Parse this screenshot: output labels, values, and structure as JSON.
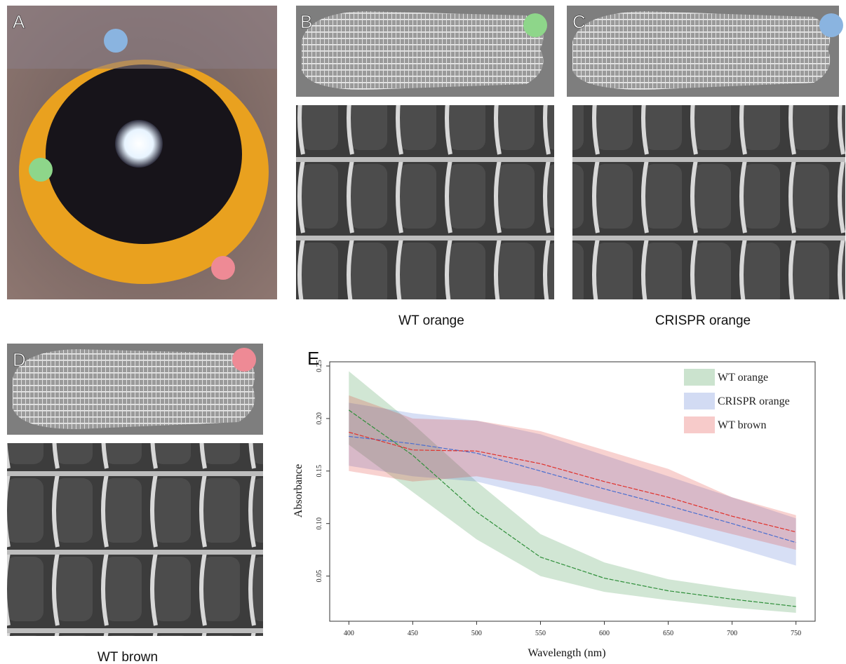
{
  "panels": {
    "labels": [
      "A",
      "B",
      "C",
      "D",
      "E"
    ],
    "captions": [
      "WT orange",
      "CRISPR orange",
      "WT brown"
    ]
  },
  "chart_data": {
    "type": "band-line",
    "x_label": "Wavelength (nm)",
    "y_label": "Absorbance",
    "x": [
      400,
      450,
      500,
      550,
      600,
      650,
      700,
      750
    ],
    "xlim": [
      385,
      765
    ],
    "xticks": [
      400,
      450,
      500,
      550,
      600,
      650,
      700,
      750
    ],
    "ylim": [
      0.007,
      0.254
    ],
    "yticks": [
      0.05,
      {
        "value": 0.1,
        "label": "0.10"
      },
      0.15,
      {
        "value": 0.2,
        "label": "0.20"
      },
      0.25
    ],
    "legend": "upper right",
    "series": [
      {
        "name": "WT orange",
        "color": "#2f8f3a",
        "values": [
          0.208,
          0.165,
          0.111,
          0.068,
          0.048,
          0.036,
          0.028,
          0.021
        ],
        "lower": [
          0.175,
          0.13,
          0.085,
          0.05,
          0.035,
          0.027,
          0.02,
          0.015
        ],
        "upper": [
          0.245,
          0.195,
          0.14,
          0.09,
          0.063,
          0.047,
          0.038,
          0.03
        ]
      },
      {
        "name": "CRISPR orange",
        "color": "#4a6fd0",
        "values": [
          0.183,
          0.176,
          0.167,
          0.15,
          0.133,
          0.117,
          0.1,
          0.082
        ],
        "lower": [
          0.155,
          0.145,
          0.14,
          0.125,
          0.11,
          0.095,
          0.078,
          0.06
        ],
        "upper": [
          0.215,
          0.205,
          0.198,
          0.185,
          0.165,
          0.145,
          0.125,
          0.105
        ]
      },
      {
        "name": "WT brown",
        "color": "#e0302a",
        "values": [
          0.187,
          0.17,
          0.169,
          0.157,
          0.14,
          0.125,
          0.107,
          0.092
        ],
        "lower": [
          0.15,
          0.14,
          0.145,
          0.135,
          0.12,
          0.105,
          0.09,
          0.075
        ],
        "upper": [
          0.222,
          0.2,
          0.198,
          0.188,
          0.17,
          0.152,
          0.125,
          0.108
        ]
      }
    ]
  }
}
